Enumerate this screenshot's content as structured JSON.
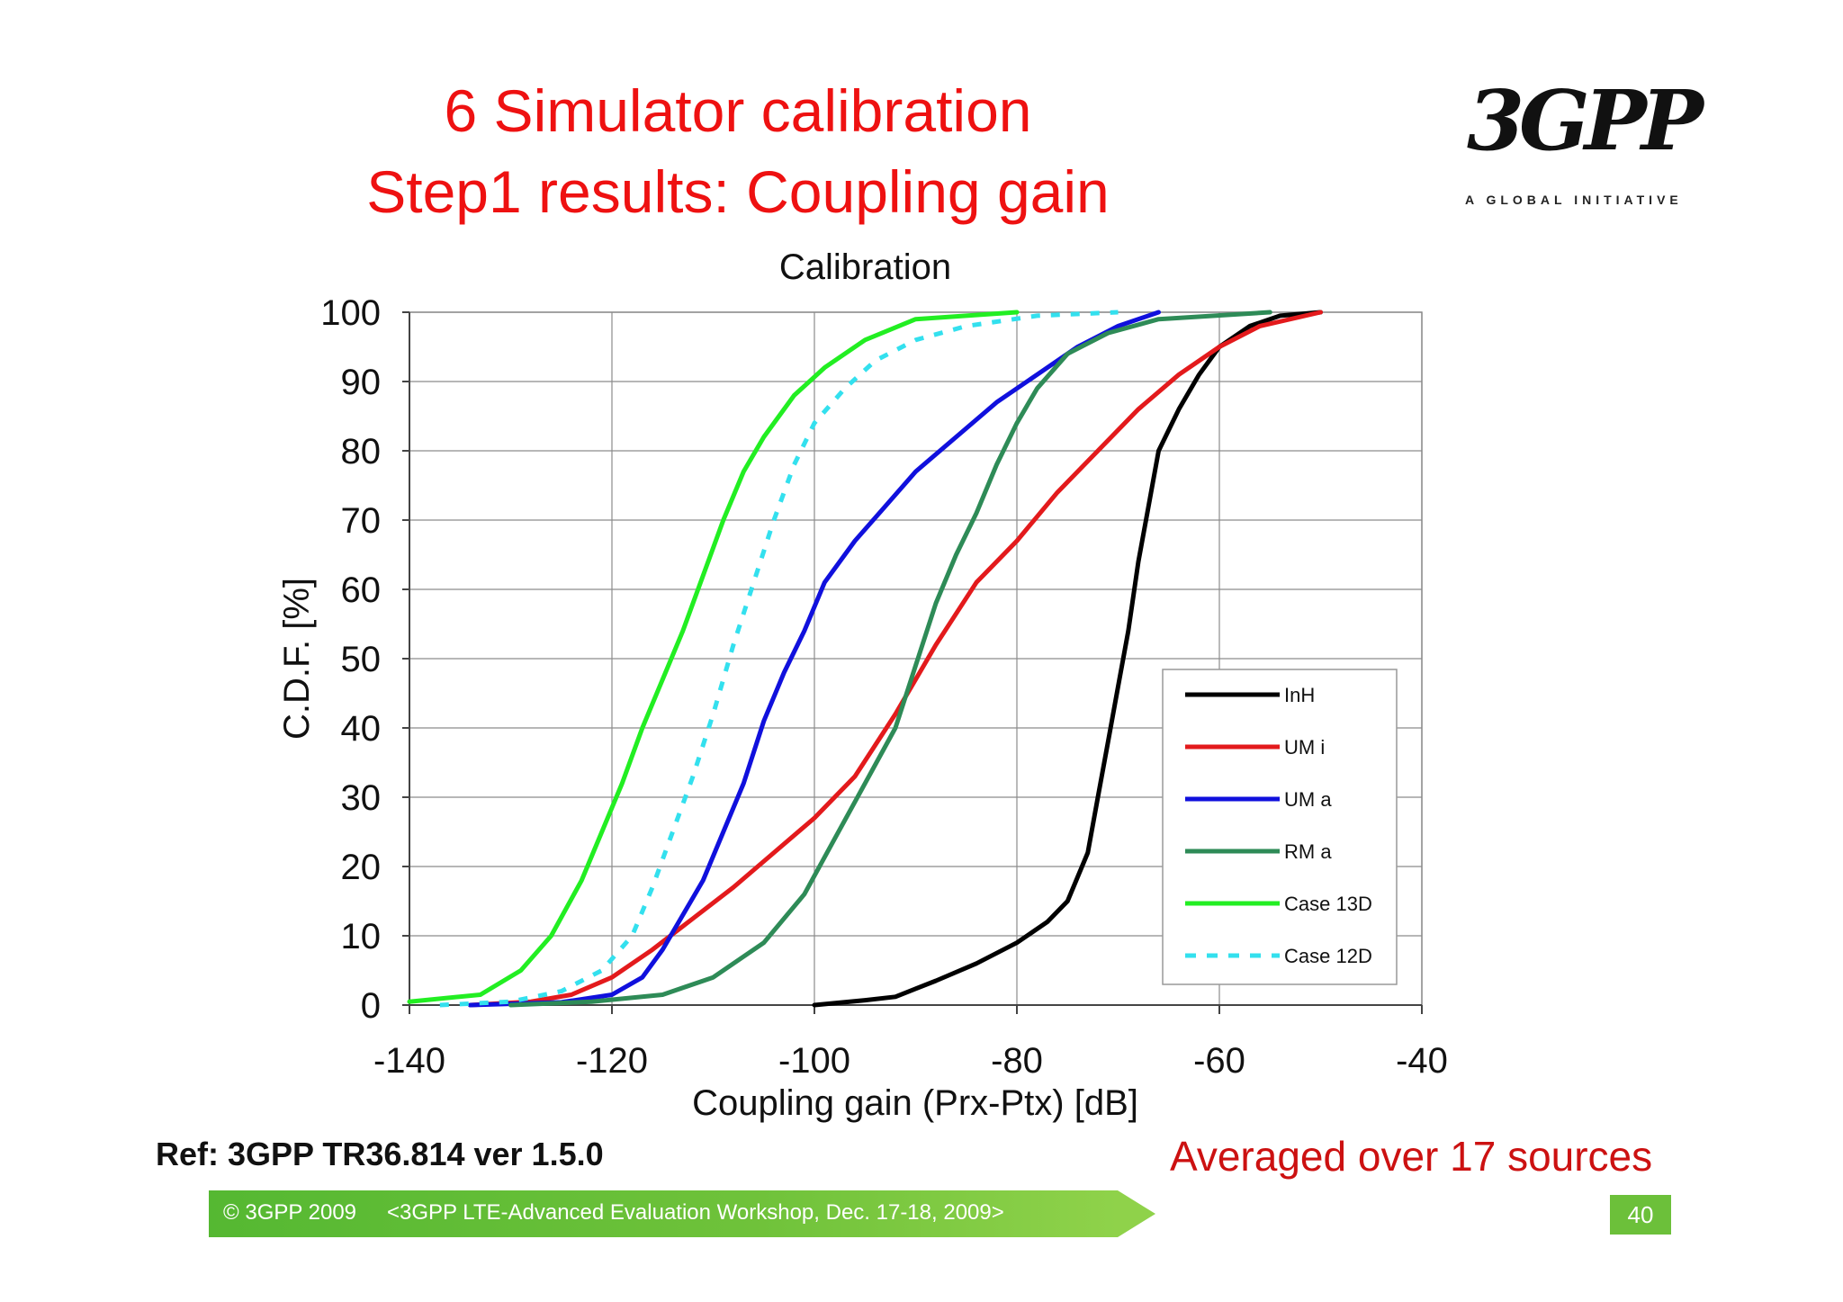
{
  "slide": {
    "title_line1": "6 Simulator calibration",
    "title_line2": "Step1 results: Coupling gain",
    "ref": "Ref: 3GPP TR36.814 ver 1.5.0",
    "note": "Averaged over 17 sources",
    "logo_text": "3GPP",
    "logo_tagline": "A GLOBAL INITIATIVE",
    "footer_left": "© 3GPP 2009",
    "footer_center": "<3GPP LTE-Advanced Evaluation Workshop, Dec. 17-18, 2009>",
    "page_number": "40"
  },
  "colors": {
    "title": "#ee1111",
    "footer": "#6cc03a"
  },
  "chart_data": {
    "type": "line",
    "title": "Calibration",
    "xlabel": "Coupling gain (Prx-Ptx) [dB]",
    "ylabel": "C.D.F. [%]",
    "xlim": [
      -140,
      -40
    ],
    "ylim": [
      0,
      100
    ],
    "xticks": [
      -140,
      -120,
      -100,
      -80,
      -60,
      -40
    ],
    "yticks": [
      0,
      10,
      20,
      30,
      40,
      50,
      60,
      70,
      80,
      90,
      100
    ],
    "grid": true,
    "legend_position": "bottom-right",
    "series": [
      {
        "name": "InH",
        "color": "#000000",
        "dash": "solid",
        "points": [
          [
            -100,
            0
          ],
          [
            -95,
            0.7
          ],
          [
            -92,
            1.2
          ],
          [
            -88,
            3.5
          ],
          [
            -84,
            6
          ],
          [
            -80,
            9
          ],
          [
            -77,
            12
          ],
          [
            -75,
            15
          ],
          [
            -73,
            22
          ],
          [
            -72,
            30
          ],
          [
            -71,
            38
          ],
          [
            -70,
            46
          ],
          [
            -69,
            54
          ],
          [
            -68,
            64
          ],
          [
            -67,
            72
          ],
          [
            -66,
            80
          ],
          [
            -64,
            86
          ],
          [
            -62,
            91
          ],
          [
            -60,
            95
          ],
          [
            -57,
            98
          ],
          [
            -54,
            99.5
          ],
          [
            -50,
            100
          ]
        ]
      },
      {
        "name": "UM i",
        "color": "#e31a1c",
        "dash": "solid",
        "points": [
          [
            -134,
            0
          ],
          [
            -128,
            0.5
          ],
          [
            -124,
            1.5
          ],
          [
            -120,
            4
          ],
          [
            -116,
            8
          ],
          [
            -112,
            12.5
          ],
          [
            -108,
            17
          ],
          [
            -104,
            22
          ],
          [
            -100,
            27
          ],
          [
            -96,
            33
          ],
          [
            -92,
            42
          ],
          [
            -88,
            52
          ],
          [
            -84,
            61
          ],
          [
            -80,
            67
          ],
          [
            -76,
            74
          ],
          [
            -72,
            80
          ],
          [
            -68,
            86
          ],
          [
            -64,
            91
          ],
          [
            -60,
            95
          ],
          [
            -56,
            98
          ],
          [
            -50,
            100
          ]
        ]
      },
      {
        "name": "UM a",
        "color": "#1010dd",
        "dash": "solid",
        "points": [
          [
            -134,
            0
          ],
          [
            -125,
            0.4
          ],
          [
            -120,
            1.5
          ],
          [
            -117,
            4
          ],
          [
            -115,
            8
          ],
          [
            -113,
            13
          ],
          [
            -111,
            18
          ],
          [
            -109,
            25
          ],
          [
            -107,
            32
          ],
          [
            -105,
            41
          ],
          [
            -103,
            48
          ],
          [
            -101,
            54
          ],
          [
            -99,
            61
          ],
          [
            -96,
            67
          ],
          [
            -93,
            72
          ],
          [
            -90,
            77
          ],
          [
            -86,
            82
          ],
          [
            -82,
            87
          ],
          [
            -78,
            91
          ],
          [
            -74,
            95
          ],
          [
            -70,
            98
          ],
          [
            -66,
            100
          ]
        ]
      },
      {
        "name": "RM a",
        "color": "#2e8b57",
        "dash": "solid",
        "points": [
          [
            -130,
            0
          ],
          [
            -122,
            0.5
          ],
          [
            -115,
            1.5
          ],
          [
            -110,
            4
          ],
          [
            -105,
            9
          ],
          [
            -101,
            16
          ],
          [
            -98,
            24
          ],
          [
            -95,
            32
          ],
          [
            -92,
            40
          ],
          [
            -90,
            49
          ],
          [
            -88,
            58
          ],
          [
            -86,
            65
          ],
          [
            -84,
            71
          ],
          [
            -82,
            78
          ],
          [
            -80,
            84
          ],
          [
            -78,
            89
          ],
          [
            -75,
            94
          ],
          [
            -71,
            97
          ],
          [
            -66,
            99
          ],
          [
            -55,
            100
          ]
        ]
      },
      {
        "name": "Case 13D",
        "color": "#22ee22",
        "dash": "solid",
        "points": [
          [
            -140,
            0.5
          ],
          [
            -133,
            1.5
          ],
          [
            -129,
            5
          ],
          [
            -126,
            10
          ],
          [
            -123,
            18
          ],
          [
            -121,
            25
          ],
          [
            -119,
            32
          ],
          [
            -117,
            40
          ],
          [
            -115,
            47
          ],
          [
            -113,
            54
          ],
          [
            -111,
            62
          ],
          [
            -109,
            70
          ],
          [
            -107,
            77
          ],
          [
            -105,
            82
          ],
          [
            -102,
            88
          ],
          [
            -99,
            92
          ],
          [
            -95,
            96
          ],
          [
            -90,
            99
          ],
          [
            -80,
            100
          ]
        ]
      },
      {
        "name": "Case 12D",
        "color": "#33e0ee",
        "dash": "dashed",
        "points": [
          [
            -137,
            0
          ],
          [
            -130,
            0.5
          ],
          [
            -125,
            2
          ],
          [
            -121,
            5
          ],
          [
            -118,
            10
          ],
          [
            -116,
            17
          ],
          [
            -114,
            25
          ],
          [
            -112,
            33
          ],
          [
            -110,
            42
          ],
          [
            -108,
            52
          ],
          [
            -106,
            61
          ],
          [
            -104,
            70
          ],
          [
            -102,
            78
          ],
          [
            -100,
            84
          ],
          [
            -97,
            89
          ],
          [
            -94,
            93
          ],
          [
            -90,
            96
          ],
          [
            -85,
            98
          ],
          [
            -78,
            99.5
          ],
          [
            -70,
            100
          ]
        ]
      }
    ]
  }
}
